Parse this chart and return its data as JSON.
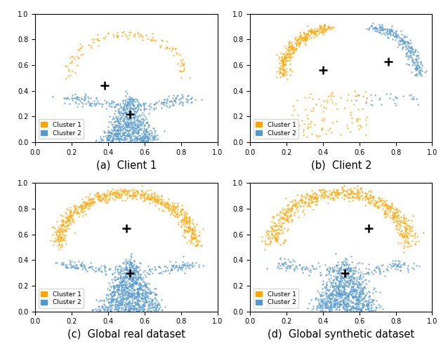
{
  "orange_color": "#FFA500",
  "blue_color": "#5599CC",
  "marker_size": 3,
  "alpha": 0.75,
  "titles": [
    "(a)  Client 1",
    "(b)  Client 2",
    "(c)  Global real dataset",
    "(d)  Global synthetic dataset"
  ],
  "cluster1_label": "Cluster 1",
  "cluster2_label": "Cluster 2",
  "centroid_color": "black"
}
